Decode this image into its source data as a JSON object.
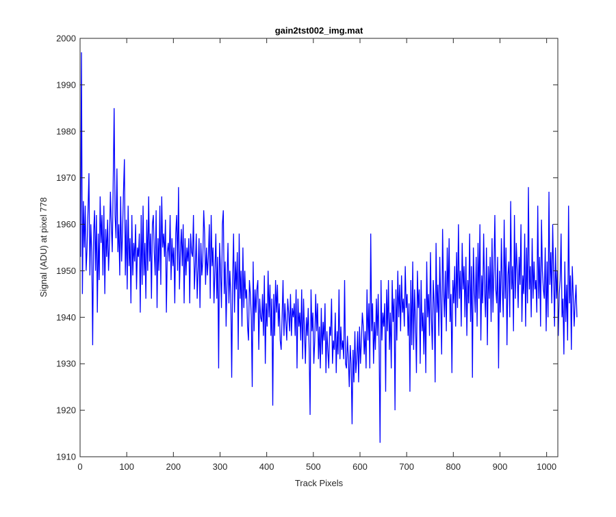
{
  "chart_data": {
    "type": "line",
    "title": "gain2tst002_img.mat",
    "xlabel": "Track Pixels",
    "ylabel": "Signal (ADU) at pixel 778",
    "xlim": [
      0,
      1024
    ],
    "ylim": [
      1910,
      2000
    ],
    "xticks": [
      0,
      100,
      200,
      300,
      400,
      500,
      600,
      700,
      800,
      900,
      1000
    ],
    "yticks": [
      1910,
      1920,
      1930,
      1940,
      1950,
      1960,
      1970,
      1980,
      1990,
      2000
    ],
    "grid": false,
    "series_color": "#0000ff",
    "series": [
      {
        "x_start": 1,
        "x_step": 2,
        "values": [
          1953,
          1997,
          1945,
          1965,
          1955,
          1964,
          1950,
          1955,
          1963,
          1971,
          1949,
          1960,
          1954,
          1934,
          1958,
          1963,
          1950,
          1962,
          1941,
          1958,
          1948,
          1966,
          1956,
          1962,
          1949,
          1964,
          1945,
          1959,
          1953,
          1961,
          1950,
          1956,
          1967,
          1960,
          1954,
          1969,
          1985,
          1962,
          1957,
          1972,
          1954,
          1960,
          1949,
          1966,
          1952,
          1958,
          1967,
          1974,
          1949,
          1961,
          1946,
          1964,
          1951,
          1957,
          1943,
          1962,
          1949,
          1956,
          1952,
          1960,
          1946,
          1955,
          1953,
          1958,
          1941,
          1962,
          1947,
          1964,
          1949,
          1956,
          1944,
          1961,
          1950,
          1966,
          1952,
          1958,
          1944,
          1960,
          1962,
          1954,
          1949,
          1963,
          1942,
          1957,
          1950,
          1964,
          1947,
          1966,
          1955,
          1958,
          1953,
          1961,
          1941,
          1954,
          1956,
          1952,
          1962,
          1948,
          1957,
          1951,
          1955,
          1943,
          1958,
          1962,
          1950,
          1968,
          1946,
          1954,
          1959,
          1951,
          1960,
          1943,
          1957,
          1949,
          1955,
          1952,
          1957,
          1943,
          1958,
          1954,
          1953,
          1962,
          1946,
          1951,
          1958,
          1944,
          1950,
          1957,
          1942,
          1956,
          1949,
          1952,
          1963,
          1958,
          1947,
          1955,
          1949,
          1953,
          1960,
          1944,
          1962,
          1951,
          1955,
          1943,
          1950,
          1958,
          1944,
          1953,
          1929,
          1956,
          1950,
          1942,
          1960,
          1963,
          1945,
          1952,
          1938,
          1948,
          1956,
          1943,
          1950,
          1945,
          1927,
          1948,
          1958,
          1941,
          1952,
          1946,
          1954,
          1933,
          1958,
          1944,
          1950,
          1938,
          1955,
          1942,
          1950,
          1944,
          1946,
          1938,
          1935,
          1948,
          1945,
          1940,
          1925,
          1952,
          1937,
          1946,
          1941,
          1946,
          1948,
          1933,
          1944,
          1940,
          1939,
          1945,
          1936,
          1949,
          1930,
          1943,
          1938,
          1950,
          1940,
          1947,
          1936,
          1944,
          1921,
          1945,
          1936,
          1948,
          1941,
          1947,
          1938,
          1943,
          1935,
          1933,
          1940,
          1948,
          1936,
          1943,
          1939,
          1935,
          1944,
          1941,
          1937,
          1945,
          1936,
          1942,
          1940,
          1943,
          1936,
          1946,
          1929,
          1944,
          1938,
          1941,
          1935,
          1946,
          1931,
          1944,
          1937,
          1930,
          1940,
          1936,
          1942,
          1933,
          1919,
          1946,
          1937,
          1941,
          1930,
          1935,
          1945,
          1937,
          1943,
          1931,
          1938,
          1929,
          1942,
          1932,
          1939,
          1935,
          1943,
          1928,
          1937,
          1933,
          1929,
          1938,
          1936,
          1944,
          1930,
          1935,
          1933,
          1941,
          1928,
          1937,
          1932,
          1946,
          1931,
          1938,
          1933,
          1935,
          1931,
          1948,
          1930,
          1929,
          1936,
          1931,
          1925,
          1934,
          1930,
          1917,
          1933,
          1926,
          1937,
          1928,
          1931,
          1937,
          1926,
          1938,
          1930,
          1935,
          1941,
          1938,
          1932,
          1937,
          1929,
          1946,
          1935,
          1943,
          1929,
          1958,
          1937,
          1943,
          1930,
          1939,
          1933,
          1944,
          1936,
          1945,
          1933,
          1913,
          1948,
          1935,
          1941,
          1938,
          1943,
          1924,
          1946,
          1937,
          1948,
          1933,
          1941,
          1929,
          1948,
          1939,
          1944,
          1920,
          1946,
          1935,
          1950,
          1940,
          1947,
          1937,
          1949,
          1941,
          1944,
          1938,
          1951,
          1942,
          1945,
          1936,
          1943,
          1924,
          1948,
          1934,
          1952,
          1933,
          1946,
          1939,
          1928,
          1950,
          1942,
          1946,
          1930,
          1948,
          1937,
          1941,
          1932,
          1944,
          1928,
          1952,
          1940,
          1945,
          1936,
          1954,
          1940,
          1933,
          1948,
          1943,
          1926,
          1956,
          1941,
          1947,
          1936,
          1953,
          1943,
          1932,
          1959,
          1946,
          1940,
          1950,
          1937,
          1955,
          1944,
          1957,
          1939,
          1945,
          1928,
          1948,
          1943,
          1951,
          1938,
          1954,
          1942,
          1960,
          1944,
          1950,
          1938,
          1956,
          1946,
          1951,
          1940,
          1953,
          1936,
          1948,
          1943,
          1958,
          1939,
          1951,
          1927,
          1955,
          1946,
          1941,
          1953,
          1938,
          1956,
          1944,
          1960,
          1935,
          1949,
          1943,
          1958,
          1946,
          1940,
          1955,
          1934,
          1951,
          1944,
          1953,
          1939,
          1957,
          1941,
          1950,
          1962,
          1946,
          1943,
          1953,
          1929,
          1950,
          1941,
          1957,
          1947,
          1940,
          1961,
          1944,
          1955,
          1934,
          1949,
          1952,
          1940,
          1965,
          1946,
          1951,
          1937,
          1962,
          1944,
          1956,
          1950,
          1942,
          1953,
          1947,
          1960,
          1939,
          1949,
          1945,
          1958,
          1938,
          1955,
          1943,
          1968,
          1946,
          1951,
          1940,
          1957,
          1944,
          1952,
          1946,
          1948,
          1941,
          1964,
          1944,
          1953,
          1938,
          1961,
          1950,
          1946,
          1944,
          1955,
          1937,
          1952,
          1940,
          1967,
          1947,
          1954,
          1943,
          1960,
          1949,
          1938,
          1955,
          1944,
          1950,
          1936,
          1945,
          1948,
          1958,
          1940,
          1944,
          1932,
          1952,
          1939,
          1947,
          1935,
          1964,
          1943,
          1949,
          1933,
          1951,
          1945,
          1938,
          1943,
          1947,
          1940
        ]
      }
    ]
  }
}
